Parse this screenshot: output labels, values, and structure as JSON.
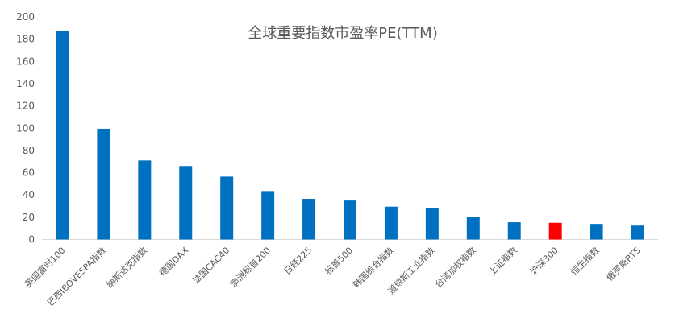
{
  "chart_data": {
    "type": "bar",
    "title": "全球重要指数市盈率PE(TTM)",
    "xlabel": "",
    "ylabel": "",
    "ylim": [
      0,
      200
    ],
    "yticks": [
      0,
      20,
      40,
      60,
      80,
      100,
      120,
      140,
      160,
      180,
      200
    ],
    "grid": false,
    "legend": "none",
    "default_color": "#0070c0",
    "highlight_color": "#ff0000",
    "categories": [
      "英国富时100",
      "巴西IBOVESPA指数",
      "纳斯达克指数",
      "德国DAX",
      "法国CAC40",
      "澳洲标普200",
      "日经225",
      "标普500",
      "韩国综合指数",
      "道琼斯工业指数",
      "台湾加权指数",
      "上证指数",
      "沪深300",
      "恒生指数",
      "俄罗斯RTS"
    ],
    "values": [
      187,
      99.5,
      71,
      66,
      56.5,
      43.5,
      36.5,
      35,
      29.5,
      28.5,
      20.5,
      15.5,
      15,
      14,
      12.5
    ],
    "highlighted": [
      "沪深300"
    ]
  }
}
